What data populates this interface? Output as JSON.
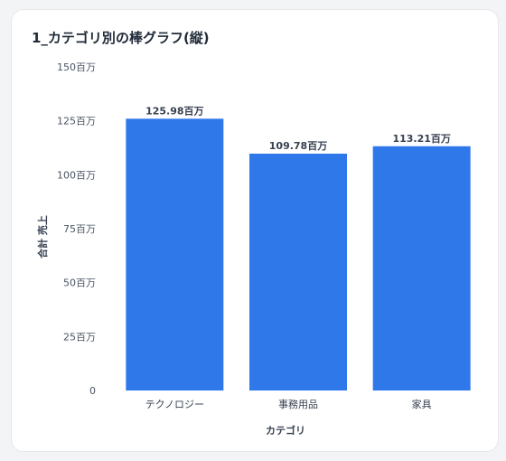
{
  "card": {
    "title": "1_カテゴリ別の棒グラフ(縦)"
  },
  "chart_data": {
    "type": "bar",
    "title": "1_カテゴリ別の棒グラフ(縦)",
    "xlabel": "カテゴリ",
    "ylabel": "合計 売上",
    "categories": [
      "テクノロジー",
      "事務用品",
      "家具"
    ],
    "values": [
      125.98,
      109.78,
      113.21
    ],
    "value_labels": [
      "125.98百万",
      "109.78百万",
      "113.21百万"
    ],
    "unit": "百万",
    "ylim": [
      0,
      150
    ],
    "y_ticks": [
      0,
      25,
      50,
      75,
      100,
      125,
      150
    ],
    "y_tick_labels": [
      "0",
      "25百万",
      "50百万",
      "75百万",
      "100百万",
      "125百万",
      "150百万"
    ],
    "grid": false,
    "legend": "none",
    "bar_color": "#2f78ea"
  }
}
